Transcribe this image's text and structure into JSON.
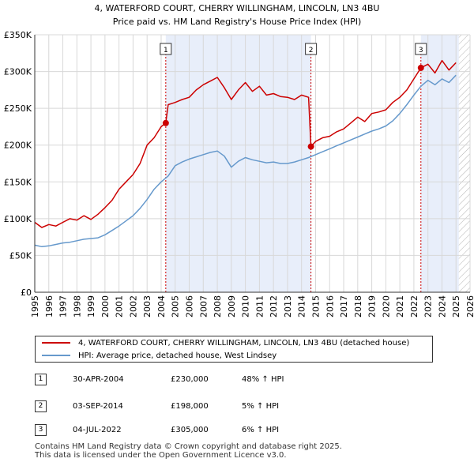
{
  "chart_data": {
    "type": "line",
    "title": "4, WATERFORD COURT, CHERRY WILLINGHAM, LINCOLN, LN3 4BU",
    "subtitle": "Price paid vs. HM Land Registry's House Price Index (HPI)",
    "xlabel": "",
    "ylabel": "",
    "xlim": [
      1995,
      2026
    ],
    "ylim": [
      0,
      350000
    ],
    "y_ticks": [
      0,
      50000,
      100000,
      150000,
      200000,
      250000,
      300000,
      350000
    ],
    "y_tick_labels": [
      "£0",
      "£50K",
      "£100K",
      "£150K",
      "£200K",
      "£250K",
      "£300K",
      "£350K"
    ],
    "x_ticks": [
      1995,
      1996,
      1997,
      1998,
      1999,
      2000,
      2001,
      2002,
      2003,
      2004,
      2005,
      2006,
      2007,
      2008,
      2009,
      2010,
      2011,
      2012,
      2013,
      2014,
      2015,
      2016,
      2017,
      2018,
      2019,
      2020,
      2021,
      2022,
      2023,
      2024,
      2025,
      2026
    ],
    "x_tick_labels": [
      "1995",
      "1996",
      "1997",
      "1998",
      "1999",
      "2000",
      "2001",
      "2002",
      "2003",
      "2004",
      "2005",
      "2006",
      "2007",
      "2008",
      "2009",
      "2010",
      "2011",
      "2012",
      "2013",
      "2014",
      "2015",
      "2016",
      "2017",
      "2018",
      "2019",
      "2020",
      "2021",
      "2022",
      "2023",
      "2024",
      "2025",
      "2026"
    ],
    "grid": true,
    "shaded_periods": [
      [
        2004.33,
        2014.67
      ],
      [
        2022.5,
        2025.2
      ]
    ],
    "hatched_from": 2025.2,
    "series": [
      {
        "name": "4, WATERFORD COURT, CHERRY WILLINGHAM, LINCOLN, LN3 4BU (detached house)",
        "color": "#cc0000",
        "x": [
          1995.0,
          1995.5,
          1996.0,
          1996.5,
          1997.0,
          1997.5,
          1998.0,
          1998.5,
          1999.0,
          1999.5,
          2000.0,
          2000.5,
          2001.0,
          2001.5,
          2002.0,
          2002.5,
          2003.0,
          2003.5,
          2004.0,
          2004.33,
          2004.5,
          2005.0,
          2005.5,
          2006.0,
          2006.5,
          2007.0,
          2007.5,
          2008.0,
          2008.5,
          2009.0,
          2009.5,
          2010.0,
          2010.5,
          2011.0,
          2011.5,
          2012.0,
          2012.5,
          2013.0,
          2013.5,
          2014.0,
          2014.5,
          2014.67,
          2015.0,
          2015.5,
          2016.0,
          2016.5,
          2017.0,
          2017.5,
          2018.0,
          2018.5,
          2019.0,
          2019.5,
          2020.0,
          2020.5,
          2021.0,
          2021.5,
          2022.0,
          2022.5,
          2023.0,
          2023.5,
          2024.0,
          2024.5,
          2025.0
        ],
        "y": [
          95000,
          88000,
          92000,
          90000,
          95000,
          100000,
          98000,
          104000,
          99000,
          106000,
          115000,
          125000,
          140000,
          150000,
          160000,
          175000,
          200000,
          210000,
          225000,
          230000,
          255000,
          258000,
          262000,
          265000,
          275000,
          282000,
          287000,
          292000,
          278000,
          262000,
          275000,
          285000,
          273000,
          280000,
          268000,
          270000,
          266000,
          265000,
          262000,
          268000,
          265000,
          198000,
          205000,
          210000,
          212000,
          218000,
          222000,
          230000,
          238000,
          232000,
          243000,
          245000,
          248000,
          258000,
          265000,
          275000,
          290000,
          305000,
          310000,
          298000,
          315000,
          302000,
          312000
        ]
      },
      {
        "name": "HPI: Average price, detached house, West Lindsey",
        "color": "#6699cc",
        "x": [
          1995.0,
          1995.5,
          1996.0,
          1996.5,
          1997.0,
          1997.5,
          1998.0,
          1998.5,
          1999.0,
          1999.5,
          2000.0,
          2000.5,
          2001.0,
          2001.5,
          2002.0,
          2002.5,
          2003.0,
          2003.5,
          2004.0,
          2004.5,
          2005.0,
          2005.5,
          2006.0,
          2006.5,
          2007.0,
          2007.5,
          2008.0,
          2008.5,
          2009.0,
          2009.5,
          2010.0,
          2010.5,
          2011.0,
          2011.5,
          2012.0,
          2012.5,
          2013.0,
          2013.5,
          2014.0,
          2014.5,
          2015.0,
          2015.5,
          2016.0,
          2016.5,
          2017.0,
          2017.5,
          2018.0,
          2018.5,
          2019.0,
          2019.5,
          2020.0,
          2020.5,
          2021.0,
          2021.5,
          2022.0,
          2022.5,
          2023.0,
          2023.5,
          2024.0,
          2024.5,
          2025.0
        ],
        "y": [
          64000,
          62000,
          63000,
          65000,
          67000,
          68000,
          70000,
          72000,
          73000,
          74000,
          78000,
          84000,
          90000,
          97000,
          104000,
          114000,
          126000,
          140000,
          150000,
          158000,
          172000,
          177000,
          181000,
          184000,
          187000,
          190000,
          192000,
          185000,
          170000,
          178000,
          183000,
          180000,
          178000,
          176000,
          177000,
          175000,
          175000,
          177000,
          180000,
          183000,
          187000,
          191000,
          195000,
          199000,
          203000,
          207000,
          211000,
          215000,
          219000,
          222000,
          226000,
          233000,
          243000,
          255000,
          268000,
          280000,
          288000,
          282000,
          290000,
          285000,
          295000
        ]
      }
    ],
    "annotations": [
      {
        "label": "1",
        "x": 2004.33,
        "y": 230000
      },
      {
        "label": "2",
        "x": 2014.67,
        "y": 198000
      },
      {
        "label": "3",
        "x": 2022.5,
        "y": 305000
      }
    ]
  },
  "legend": {
    "property_label": "4, WATERFORD COURT, CHERRY WILLINGHAM, LINCOLN, LN3 4BU (detached house)",
    "hpi_label": "HPI: Average price, detached house, West Lindsey"
  },
  "sales": [
    {
      "num": "1",
      "date": "30-APR-2004",
      "price": "£230,000",
      "hpi": "48% ↑ HPI"
    },
    {
      "num": "2",
      "date": "03-SEP-2014",
      "price": "£198,000",
      "hpi": "5% ↑ HPI"
    },
    {
      "num": "3",
      "date": "04-JUL-2022",
      "price": "£305,000",
      "hpi": "6% ↑ HPI"
    }
  ],
  "footer": {
    "line1": "Contains HM Land Registry data © Crown copyright and database right 2025.",
    "line2": "This data is licensed under the Open Government Licence v3.0."
  }
}
